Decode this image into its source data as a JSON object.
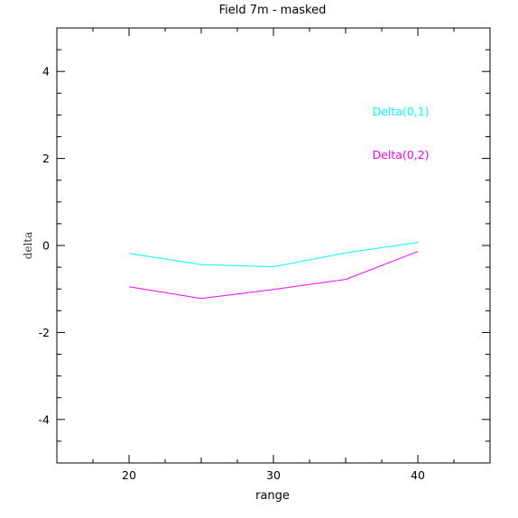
{
  "chart_data": {
    "type": "line",
    "title": "Field 7m - masked",
    "xlabel": "range",
    "ylabel": "delta",
    "xlim": [
      15,
      45
    ],
    "ylim": [
      -5,
      5
    ],
    "x_ticks": [
      20,
      30,
      40
    ],
    "y_ticks": [
      -4,
      -2,
      0,
      2,
      4
    ],
    "x_tick_labels": [
      "20",
      "30",
      "40"
    ],
    "y_tick_labels": [
      "-4",
      "-2",
      "0",
      "2",
      "4"
    ],
    "grid": false,
    "legend_position": "right",
    "series": [
      {
        "name": "Delta(0,1)",
        "color": "#00ffff",
        "x": [
          20,
          25,
          30,
          35,
          40
        ],
        "y": [
          -0.18,
          -0.44,
          -0.49,
          -0.17,
          0.07
        ]
      },
      {
        "name": "Delta(0,2)",
        "color": "#ff00ff",
        "x": [
          20,
          25,
          30,
          35,
          40
        ],
        "y": [
          -0.95,
          -1.22,
          -1.01,
          -0.78,
          -0.14
        ]
      }
    ]
  }
}
